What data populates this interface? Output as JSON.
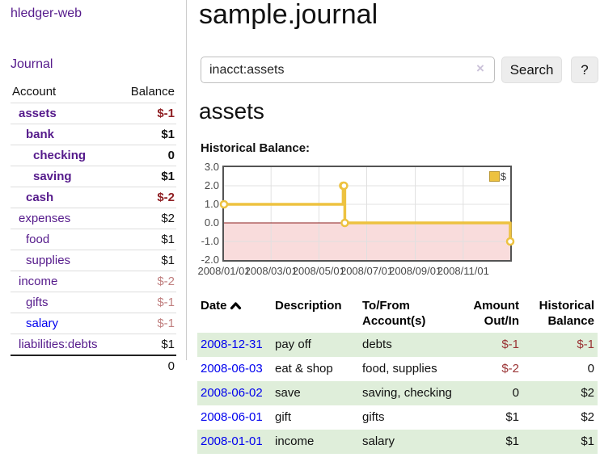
{
  "colors": {
    "link_purple": "#551a8b",
    "link_blue": "#0000ee",
    "negative_strong": "#8f1f23",
    "negative_faded": "#c07f7f",
    "table_negative": "#9a3334",
    "row_stripe_green": "#dfeeda",
    "chart_line_gold": "#edc240",
    "chart_negative_fill": "#f9dcdc",
    "chart_zero_line": "#8b1d1d"
  },
  "sidebar": {
    "brand": "hledger-web",
    "nav_journal": "Journal",
    "accounts": {
      "headers": {
        "account": "Account",
        "balance": "Balance"
      },
      "rows": [
        {
          "name": "assets",
          "indent": 1,
          "bold": true,
          "balance": "$-1"
        },
        {
          "name": "bank",
          "indent": 2,
          "bold": true,
          "balance": "$1"
        },
        {
          "name": "checking",
          "indent": 3,
          "bold": true,
          "balance": "0"
        },
        {
          "name": "saving",
          "indent": 3,
          "bold": true,
          "balance": "$1"
        },
        {
          "name": "cash",
          "indent": 2,
          "bold": true,
          "balance": "$-2"
        },
        {
          "name": "expenses",
          "indent": 1,
          "bold": false,
          "balance": "$2"
        },
        {
          "name": "food",
          "indent": 2,
          "bold": false,
          "balance": "$1"
        },
        {
          "name": "supplies",
          "indent": 2,
          "bold": false,
          "balance": "$1"
        },
        {
          "name": "income",
          "indent": 1,
          "bold": false,
          "balance": "$-2"
        },
        {
          "name": "gifts",
          "indent": 2,
          "bold": false,
          "balance": "$-1"
        },
        {
          "name": "salary",
          "indent": 2,
          "bold": false,
          "balance": "$-1",
          "unvisited": true
        },
        {
          "name": "liabilities:debts",
          "indent": 1,
          "bold": false,
          "balance": "$1"
        }
      ],
      "total": "0"
    }
  },
  "header": {
    "title": "sample.journal"
  },
  "search": {
    "value": "inacct:assets",
    "clear_icon": "×",
    "button_label": "Search",
    "help_label": "?"
  },
  "account_page": {
    "heading": "assets",
    "chart_label": "Historical Balance:"
  },
  "chart_data": {
    "type": "line",
    "step": true,
    "title": "Historical Balance:",
    "series": [
      {
        "name": "$",
        "color": "#edc240",
        "points": [
          [
            "2008-01-01",
            1.0
          ],
          [
            "2008-06-01",
            2.0
          ],
          [
            "2008-06-02",
            2.0
          ],
          [
            "2008-06-03",
            0.0
          ],
          [
            "2008-12-31",
            -1.0
          ]
        ]
      }
    ],
    "xrange": [
      "2008-01-01",
      "2008-12-31"
    ],
    "ylim": [
      -2.0,
      3.0
    ],
    "yticks": [
      "3.0",
      "2.0",
      "1.0",
      "0.0",
      "-1.0",
      "-2.0"
    ],
    "xticks": [
      "2008/01/01",
      "2008/03/01",
      "2008/05/01",
      "2008/07/01",
      "2008/09/01",
      "2008/11/01"
    ],
    "legend": {
      "position": "top-right",
      "entries": [
        "$"
      ]
    },
    "grid": true,
    "negative_region_color": "#f9dcdc",
    "zero_line_color": "#8b1d1d"
  },
  "register": {
    "headers": {
      "date": "Date",
      "description": "Description",
      "account_line1": "To/From",
      "account_line2": "Account(s)",
      "amount_line1": "Amount",
      "amount_line2": "Out/In",
      "balance_line1": "Historical",
      "balance_line2": "Balance"
    },
    "rows": [
      {
        "date": "2008-12-31",
        "description": "pay off",
        "accounts": "debts",
        "amount": "$-1",
        "balance": "$-1"
      },
      {
        "date": "2008-06-03",
        "description": "eat & shop",
        "accounts": "food, supplies",
        "amount": "$-2",
        "balance": "0"
      },
      {
        "date": "2008-06-02",
        "description": "save",
        "accounts": "saving, checking",
        "amount": "0",
        "balance": "$2"
      },
      {
        "date": "2008-06-01",
        "description": "gift",
        "accounts": "gifts",
        "amount": "$1",
        "balance": "$2"
      },
      {
        "date": "2008-01-01",
        "description": "income",
        "accounts": "salary",
        "amount": "$1",
        "balance": "$1"
      }
    ]
  }
}
